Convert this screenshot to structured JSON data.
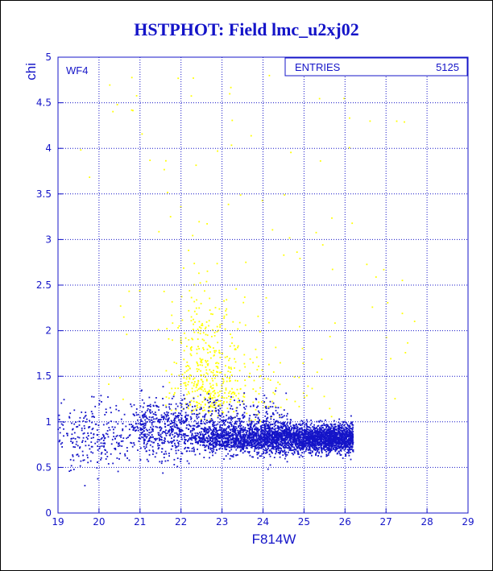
{
  "chart_data": {
    "type": "scatter",
    "title": "HSTPHOT: Field lmc_u2xj02",
    "xlabel": "F814W",
    "ylabel": "chi",
    "xlim": [
      19,
      29
    ],
    "ylim": [
      0,
      5
    ],
    "x_ticks": [
      "19",
      "20",
      "21",
      "22",
      "23",
      "24",
      "25",
      "26",
      "27",
      "28",
      "29"
    ],
    "y_ticks": [
      "0",
      "0.5",
      "1",
      "1.5",
      "2",
      "2.5",
      "3",
      "3.5",
      "4",
      "4.5",
      "5"
    ],
    "grid": true,
    "panel_label": "WF4",
    "stats_box": {
      "label": "ENTRIES",
      "value": "5125"
    },
    "series": [
      {
        "color": "#1414c8",
        "shape": "dots",
        "core_x_range": [
          22.0,
          26.2
        ],
        "core_y_range": [
          0.65,
          1.05
        ],
        "extends_to": {
          "x_min": 19.0,
          "y_min": 0.3,
          "y_max": 1.5
        }
      },
      {
        "color": "#ffff00",
        "shape": "dots",
        "core_x_range": [
          21.5,
          24.5
        ],
        "core_y_range": [
          1.0,
          3.0
        ],
        "extends_to": {
          "x_max": 27.7,
          "y_max": 4.9
        }
      }
    ],
    "colors": {
      "axes": "#1414c8",
      "background": "#ffffff",
      "frame": "#000000"
    }
  }
}
